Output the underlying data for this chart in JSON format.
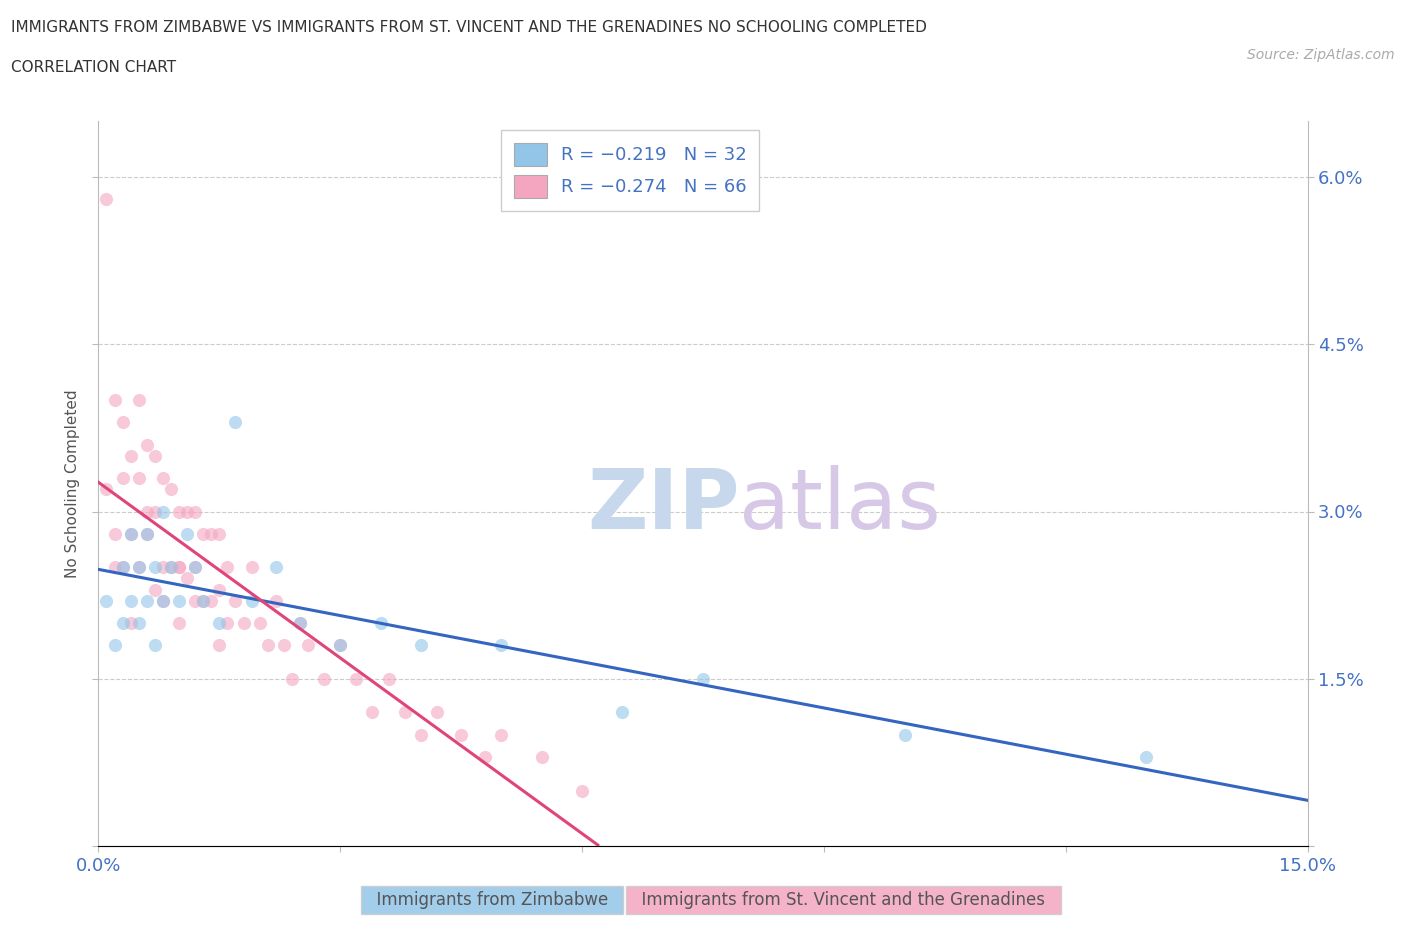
{
  "title_line1": "IMMIGRANTS FROM ZIMBABWE VS IMMIGRANTS FROM ST. VINCENT AND THE GRENADINES NO SCHOOLING COMPLETED",
  "title_line2": "CORRELATION CHART",
  "source_text": "Source: ZipAtlas.com",
  "ylabel": "No Schooling Completed",
  "watermark_zip": "ZIP",
  "watermark_atlas": "atlas",
  "xlim": [
    0.0,
    0.15
  ],
  "ylim": [
    0.0,
    0.065
  ],
  "xticks": [
    0.0,
    0.03,
    0.06,
    0.09,
    0.12,
    0.15
  ],
  "xtick_labels": [
    "0.0%",
    "",
    "",
    "",
    "",
    "15.0%"
  ],
  "yticks": [
    0.0,
    0.015,
    0.03,
    0.045,
    0.06
  ],
  "ytick_labels_right": [
    "",
    "1.5%",
    "3.0%",
    "4.5%",
    "6.0%"
  ],
  "legend_line1": "R = −0.219   N = 32",
  "legend_line2": "R = −0.274   N = 66",
  "color_zimbabwe": "#92C5E8",
  "color_svg": "#F4A6C0",
  "line_color_zimbabwe": "#3465C0",
  "line_color_svg": "#E0457A",
  "scatter_alpha": 0.6,
  "scatter_size": 90,
  "zimbabwe_x": [
    0.001,
    0.002,
    0.003,
    0.003,
    0.004,
    0.004,
    0.005,
    0.005,
    0.006,
    0.006,
    0.007,
    0.007,
    0.008,
    0.008,
    0.009,
    0.01,
    0.011,
    0.012,
    0.013,
    0.015,
    0.017,
    0.019,
    0.022,
    0.025,
    0.03,
    0.035,
    0.04,
    0.05,
    0.065,
    0.075,
    0.1,
    0.13
  ],
  "zimbabwe_y": [
    0.022,
    0.018,
    0.025,
    0.02,
    0.028,
    0.022,
    0.025,
    0.02,
    0.028,
    0.022,
    0.025,
    0.018,
    0.03,
    0.022,
    0.025,
    0.022,
    0.028,
    0.025,
    0.022,
    0.02,
    0.038,
    0.022,
    0.025,
    0.02,
    0.018,
    0.02,
    0.018,
    0.018,
    0.012,
    0.015,
    0.01,
    0.008
  ],
  "svg_x": [
    0.001,
    0.001,
    0.002,
    0.002,
    0.003,
    0.003,
    0.003,
    0.004,
    0.004,
    0.005,
    0.005,
    0.005,
    0.006,
    0.006,
    0.007,
    0.007,
    0.007,
    0.008,
    0.008,
    0.009,
    0.009,
    0.01,
    0.01,
    0.01,
    0.011,
    0.011,
    0.012,
    0.012,
    0.013,
    0.013,
    0.014,
    0.014,
    0.015,
    0.015,
    0.016,
    0.016,
    0.017,
    0.018,
    0.019,
    0.02,
    0.021,
    0.022,
    0.023,
    0.024,
    0.025,
    0.026,
    0.028,
    0.03,
    0.032,
    0.034,
    0.036,
    0.038,
    0.04,
    0.042,
    0.045,
    0.048,
    0.05,
    0.055,
    0.06,
    0.002,
    0.004,
    0.006,
    0.008,
    0.01,
    0.012,
    0.015
  ],
  "svg_y": [
    0.058,
    0.032,
    0.04,
    0.028,
    0.038,
    0.033,
    0.025,
    0.035,
    0.028,
    0.04,
    0.033,
    0.025,
    0.036,
    0.028,
    0.035,
    0.03,
    0.023,
    0.033,
    0.025,
    0.032,
    0.025,
    0.03,
    0.025,
    0.02,
    0.03,
    0.024,
    0.03,
    0.025,
    0.028,
    0.022,
    0.028,
    0.022,
    0.028,
    0.023,
    0.025,
    0.02,
    0.022,
    0.02,
    0.025,
    0.02,
    0.018,
    0.022,
    0.018,
    0.015,
    0.02,
    0.018,
    0.015,
    0.018,
    0.015,
    0.012,
    0.015,
    0.012,
    0.01,
    0.012,
    0.01,
    0.008,
    0.01,
    0.008,
    0.005,
    0.025,
    0.02,
    0.03,
    0.022,
    0.025,
    0.022,
    0.018
  ]
}
